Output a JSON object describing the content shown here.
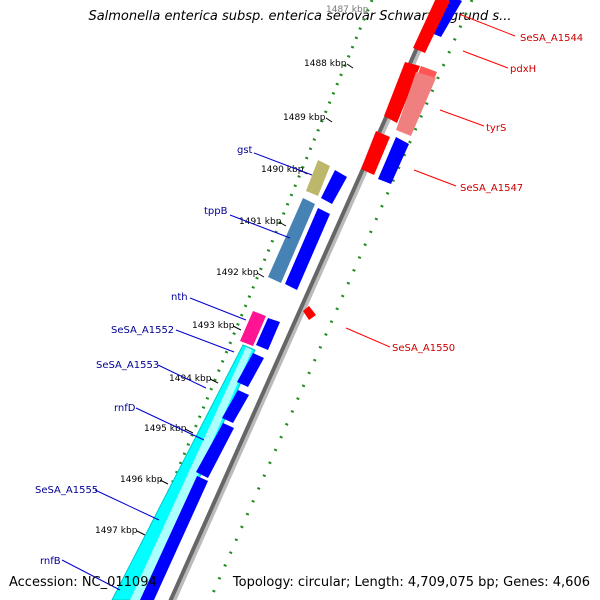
{
  "title": "Salmonella enterica subsp. enterica serovar Schwarzengrund s...",
  "accession": "Accession: NC_011094",
  "summary": "Topology: circular; Length: 4,709,075 bp; Genes: 4,606",
  "colors": {
    "backbone": "#777777",
    "tick": "#228B22",
    "forward_strand": "#0000ff",
    "reverse_strand": "#ff0000",
    "label_left": "#000099",
    "label_right": "#cc0000"
  },
  "ticks": [
    "1487 kbp",
    "1488 kbp",
    "1489 kbp",
    "1490 kbp",
    "1491 kbp",
    "1492 kbp",
    "1493 kbp",
    "1494 kbp",
    "1495 kbp",
    "1496 kbp",
    "1497 kbp"
  ],
  "left_labels": [
    "gst",
    "tppB",
    "nth",
    "SeSA_A1552",
    "SeSA_A1553",
    "rnfD",
    "SeSA_A1555",
    "rnfB"
  ],
  "right_labels": [
    "SeSA_A1544",
    "pdxH",
    "tyrS",
    "SeSA_A1547",
    "SeSA_A1550"
  ]
}
